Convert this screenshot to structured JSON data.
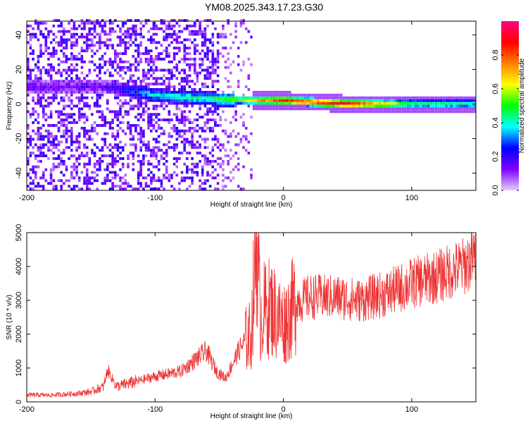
{
  "title": "YM08.2025.343.17.23.G30",
  "chart_data": [
    {
      "type": "heatmap",
      "xlabel": "Height of straight line (km)",
      "ylabel": "Frequency (Hz)",
      "xlim": [
        -200,
        150
      ],
      "ylim": [
        -50,
        48
      ],
      "xticks": [
        "-200",
        "-100",
        "0",
        "100"
      ],
      "yticks": [
        "-40",
        "-20",
        "0",
        "20",
        "40"
      ],
      "colorbar": {
        "label": "Normalized spectral amplitude",
        "range": [
          0,
          1
        ],
        "ticks": [
          "0.0",
          "0.2",
          "0.4",
          "0.6",
          "0.8"
        ],
        "colors": [
          "#e6ccff",
          "#7f00ff",
          "#0000ff",
          "#00ffff",
          "#00ff00",
          "#ffff00",
          "#ff8000",
          "#ff0000",
          "#ff0080"
        ]
      },
      "ridge": {
        "description_values": [
          {
            "x": -140,
            "freq": 10,
            "amp": 0.15
          },
          {
            "x": -100,
            "freq": 5,
            "amp": 0.4
          },
          {
            "x": -60,
            "freq": 3,
            "amp": 0.45
          },
          {
            "x": -20,
            "freq": 2,
            "amp": 0.7
          },
          {
            "x": 0,
            "freq": 2,
            "amp": 0.85
          },
          {
            "x": 50,
            "freq": 0,
            "amp": 0.95
          },
          {
            "x": 100,
            "freq": 0,
            "amp": 0.5
          },
          {
            "x": 150,
            "freq": 0,
            "amp": 0.45
          }
        ]
      }
    },
    {
      "type": "line",
      "xlabel": "Height of straight line (km)",
      "ylabel": "SNR (10 * v/v)",
      "xlim": [
        -200,
        150
      ],
      "ylim": [
        0,
        5000
      ],
      "xticks": [
        "-200",
        "-100",
        "0",
        "100"
      ],
      "yticks": [
        "0",
        "1000",
        "2000",
        "3000",
        "4000",
        "5000"
      ],
      "color": "#ee3333",
      "series": [
        {
          "x": [
            -200,
            -180,
            -160,
            -150,
            -140,
            -137,
            -130,
            -120,
            -100,
            -80,
            -70,
            -60,
            -52,
            -45,
            -35,
            -30,
            -25,
            -21,
            -18,
            -15,
            -10,
            0,
            5,
            10,
            15,
            20,
            30,
            40,
            60,
            80,
            100,
            120,
            140,
            150
          ],
          "values": [
            200,
            200,
            250,
            300,
            450,
            950,
            450,
            550,
            750,
            900,
            1200,
            1500,
            900,
            700,
            1500,
            1800,
            2000,
            5000,
            2500,
            2700,
            2800,
            2300,
            2600,
            3000,
            3000,
            3100,
            3100,
            3100,
            3000,
            3200,
            3500,
            3700,
            4000,
            4300
          ]
        }
      ]
    }
  ]
}
